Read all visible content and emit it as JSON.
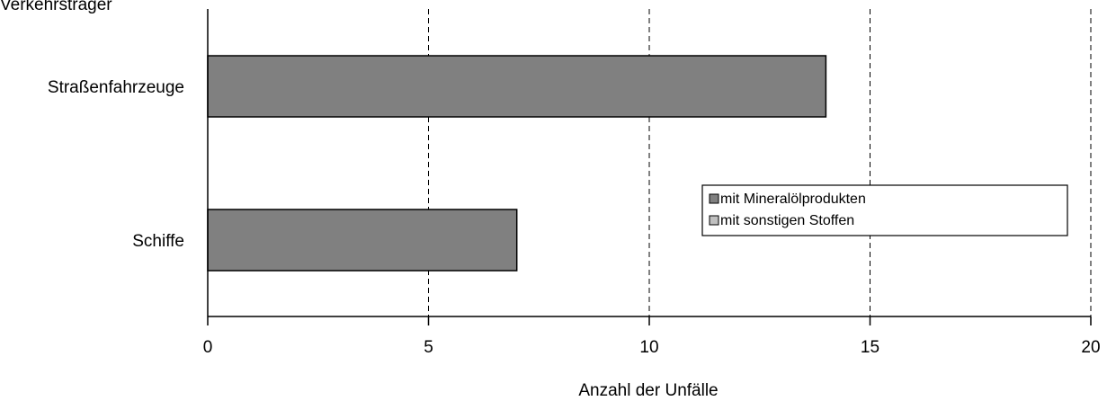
{
  "chart_data": {
    "type": "bar",
    "orientation": "horizontal",
    "title": "Verkehrsträger",
    "xlabel": "Anzahl der Unfälle",
    "ylabel": "",
    "xlim": [
      0,
      20
    ],
    "xticks": [
      "0",
      "5",
      "10",
      "15",
      "20"
    ],
    "grid": "vertical dashed",
    "categories": [
      "Straßenfahrzeuge",
      "Schiffe"
    ],
    "series": [
      {
        "name": "mit Mineralölprodukten",
        "values": [
          14,
          7
        ],
        "color": "#808080"
      },
      {
        "name": "mit sonstigen Stoffen",
        "values": [
          0,
          0
        ],
        "color": "#c0c0c0"
      }
    ],
    "legend_position": "right"
  }
}
